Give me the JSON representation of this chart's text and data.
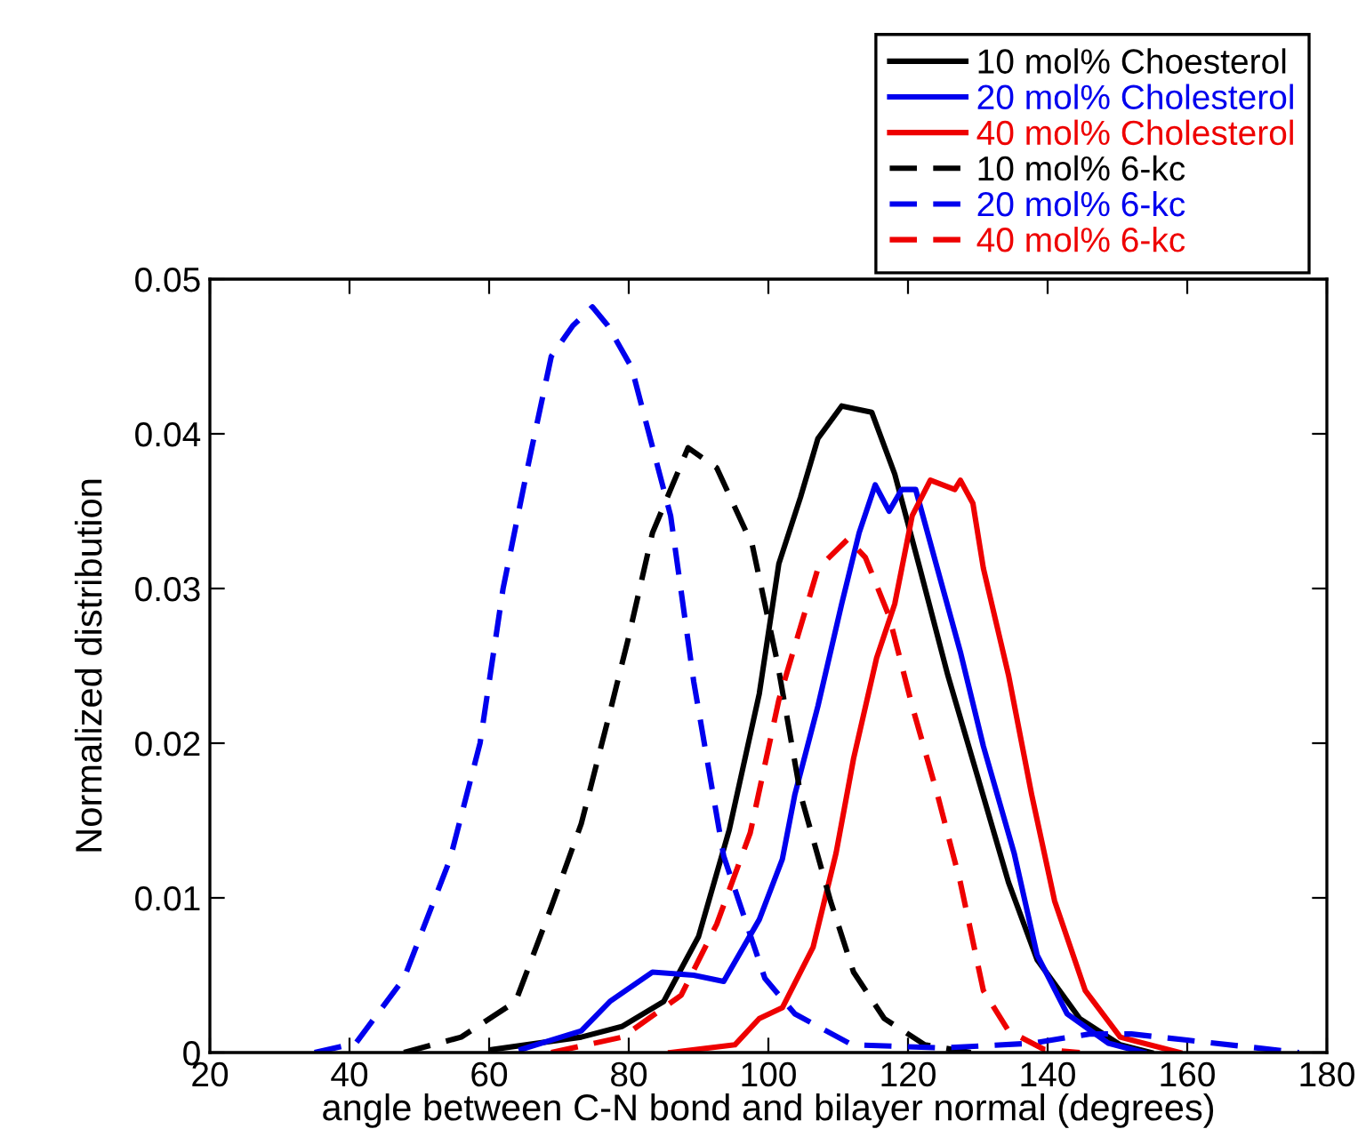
{
  "chart_data": {
    "type": "line",
    "xlabel": "angle between C-N bond and bilayer normal (degrees)",
    "ylabel": "Normalized distribution",
    "xlim": [
      20,
      180
    ],
    "xticks": [
      20,
      40,
      60,
      80,
      100,
      120,
      140,
      160,
      180
    ],
    "ylim": [
      0,
      0.05
    ],
    "yticks": [
      0,
      0.01,
      0.02,
      0.03,
      0.04,
      0.05
    ],
    "grid": false,
    "legend": "top right",
    "marker": "none",
    "series": [
      {
        "name": "10 mol% Choesterol",
        "color": "#000000",
        "line_style": "solid",
        "x": [
          60.5,
          73.2,
          79.1,
          85,
          90,
          94.4,
          98.7,
          101.5,
          104.6,
          107.1,
          110.5,
          114.8,
          118.1,
          121.7,
          125.7,
          130,
          134.4,
          138.5,
          144.6,
          150.4,
          154.8
        ],
        "values": [
          0.0002,
          0.001,
          0.0017,
          0.0033,
          0.0075,
          0.0144,
          0.0232,
          0.0316,
          0.0359,
          0.0397,
          0.0418,
          0.0414,
          0.0374,
          0.0313,
          0.0244,
          0.0178,
          0.011,
          0.006,
          0.0022,
          0.0005,
          0
        ]
      },
      {
        "name": "20 mol% Cholesterol",
        "color": "#0000ee",
        "line_style": "solid",
        "x": [
          64.6,
          73.2,
          77.3,
          83.4,
          89.3,
          93.6,
          98.7,
          102,
          103.8,
          107.1,
          110.5,
          113,
          115.3,
          117.3,
          119.1,
          121.1,
          124.2,
          127.5,
          130.8,
          135.2,
          138.5,
          142.8,
          148.7,
          153.8
        ],
        "values": [
          0.0002,
          0.0014,
          0.0033,
          0.0052,
          0.005,
          0.0046,
          0.0086,
          0.0125,
          0.0167,
          0.0224,
          0.029,
          0.0336,
          0.0367,
          0.035,
          0.0364,
          0.0364,
          0.0313,
          0.0259,
          0.0198,
          0.0129,
          0.0063,
          0.0025,
          0.0006,
          0
        ]
      },
      {
        "name": "40 mol% Cholesterol",
        "color": "#ee0000",
        "line_style": "solid",
        "x": [
          86,
          95.2,
          98.7,
          102,
          106.4,
          109.7,
          112.2,
          115.5,
          118.1,
          120.6,
          123.2,
          126.7,
          127.5,
          129.3,
          130.8,
          134.4,
          137.7,
          141,
          145.4,
          150.4,
          158.9
        ],
        "values": [
          0,
          0.0005,
          0.0022,
          0.0029,
          0.0068,
          0.0129,
          0.019,
          0.0255,
          0.029,
          0.0347,
          0.037,
          0.0364,
          0.037,
          0.0355,
          0.0313,
          0.0244,
          0.0167,
          0.0098,
          0.004,
          0.001,
          0
        ]
      },
      {
        "name": "10 mol% 6-kc",
        "color": "#000000",
        "line_style": "dashed",
        "x": [
          47.8,
          56,
          63.8,
          68.9,
          73.2,
          77.3,
          79.9,
          83.4,
          88.5,
          92.6,
          97.7,
          101.3,
          104.6,
          108.9,
          112.2,
          116.6,
          122.4,
          129
        ],
        "values": [
          0,
          0.001,
          0.0033,
          0.0094,
          0.0148,
          0.022,
          0.0267,
          0.0336,
          0.0391,
          0.0378,
          0.0328,
          0.0252,
          0.0167,
          0.0098,
          0.0052,
          0.0022,
          0.0005,
          0
        ]
      },
      {
        "name": "20 mol% 6-kc",
        "color": "#0000ee",
        "line_style": "dashed",
        "x": [
          35,
          40.9,
          47.8,
          54.4,
          58.7,
          62,
          65.6,
          68.9,
          72,
          74.8,
          77,
          80.4,
          86,
          89.3,
          93.6,
          99.5,
          103.8,
          112,
          125,
          137.7,
          146,
          152,
          160,
          176
        ],
        "values": [
          0,
          0.0006,
          0.0048,
          0.0125,
          0.02,
          0.03,
          0.038,
          0.045,
          0.047,
          0.0482,
          0.047,
          0.0443,
          0.0347,
          0.024,
          0.0127,
          0.0048,
          0.0025,
          0.0005,
          0.0003,
          0.0006,
          0.0012,
          0.0012,
          0.0008,
          0
        ]
      },
      {
        "name": "40 mol% 6-kc",
        "color": "#ee0000",
        "line_style": "dashed",
        "x": [
          68.9,
          79.1,
          87.5,
          92.6,
          97.4,
          101.5,
          103.8,
          107.1,
          111.4,
          113.9,
          117.3,
          120.6,
          124.2,
          127.5,
          130.8,
          134.4,
          139.5,
          144.6
        ],
        "values": [
          0,
          0.001,
          0.0037,
          0.0083,
          0.0142,
          0.0228,
          0.0263,
          0.0313,
          0.0332,
          0.032,
          0.0282,
          0.0224,
          0.0167,
          0.011,
          0.004,
          0.0014,
          0.0002,
          0
        ]
      }
    ]
  }
}
